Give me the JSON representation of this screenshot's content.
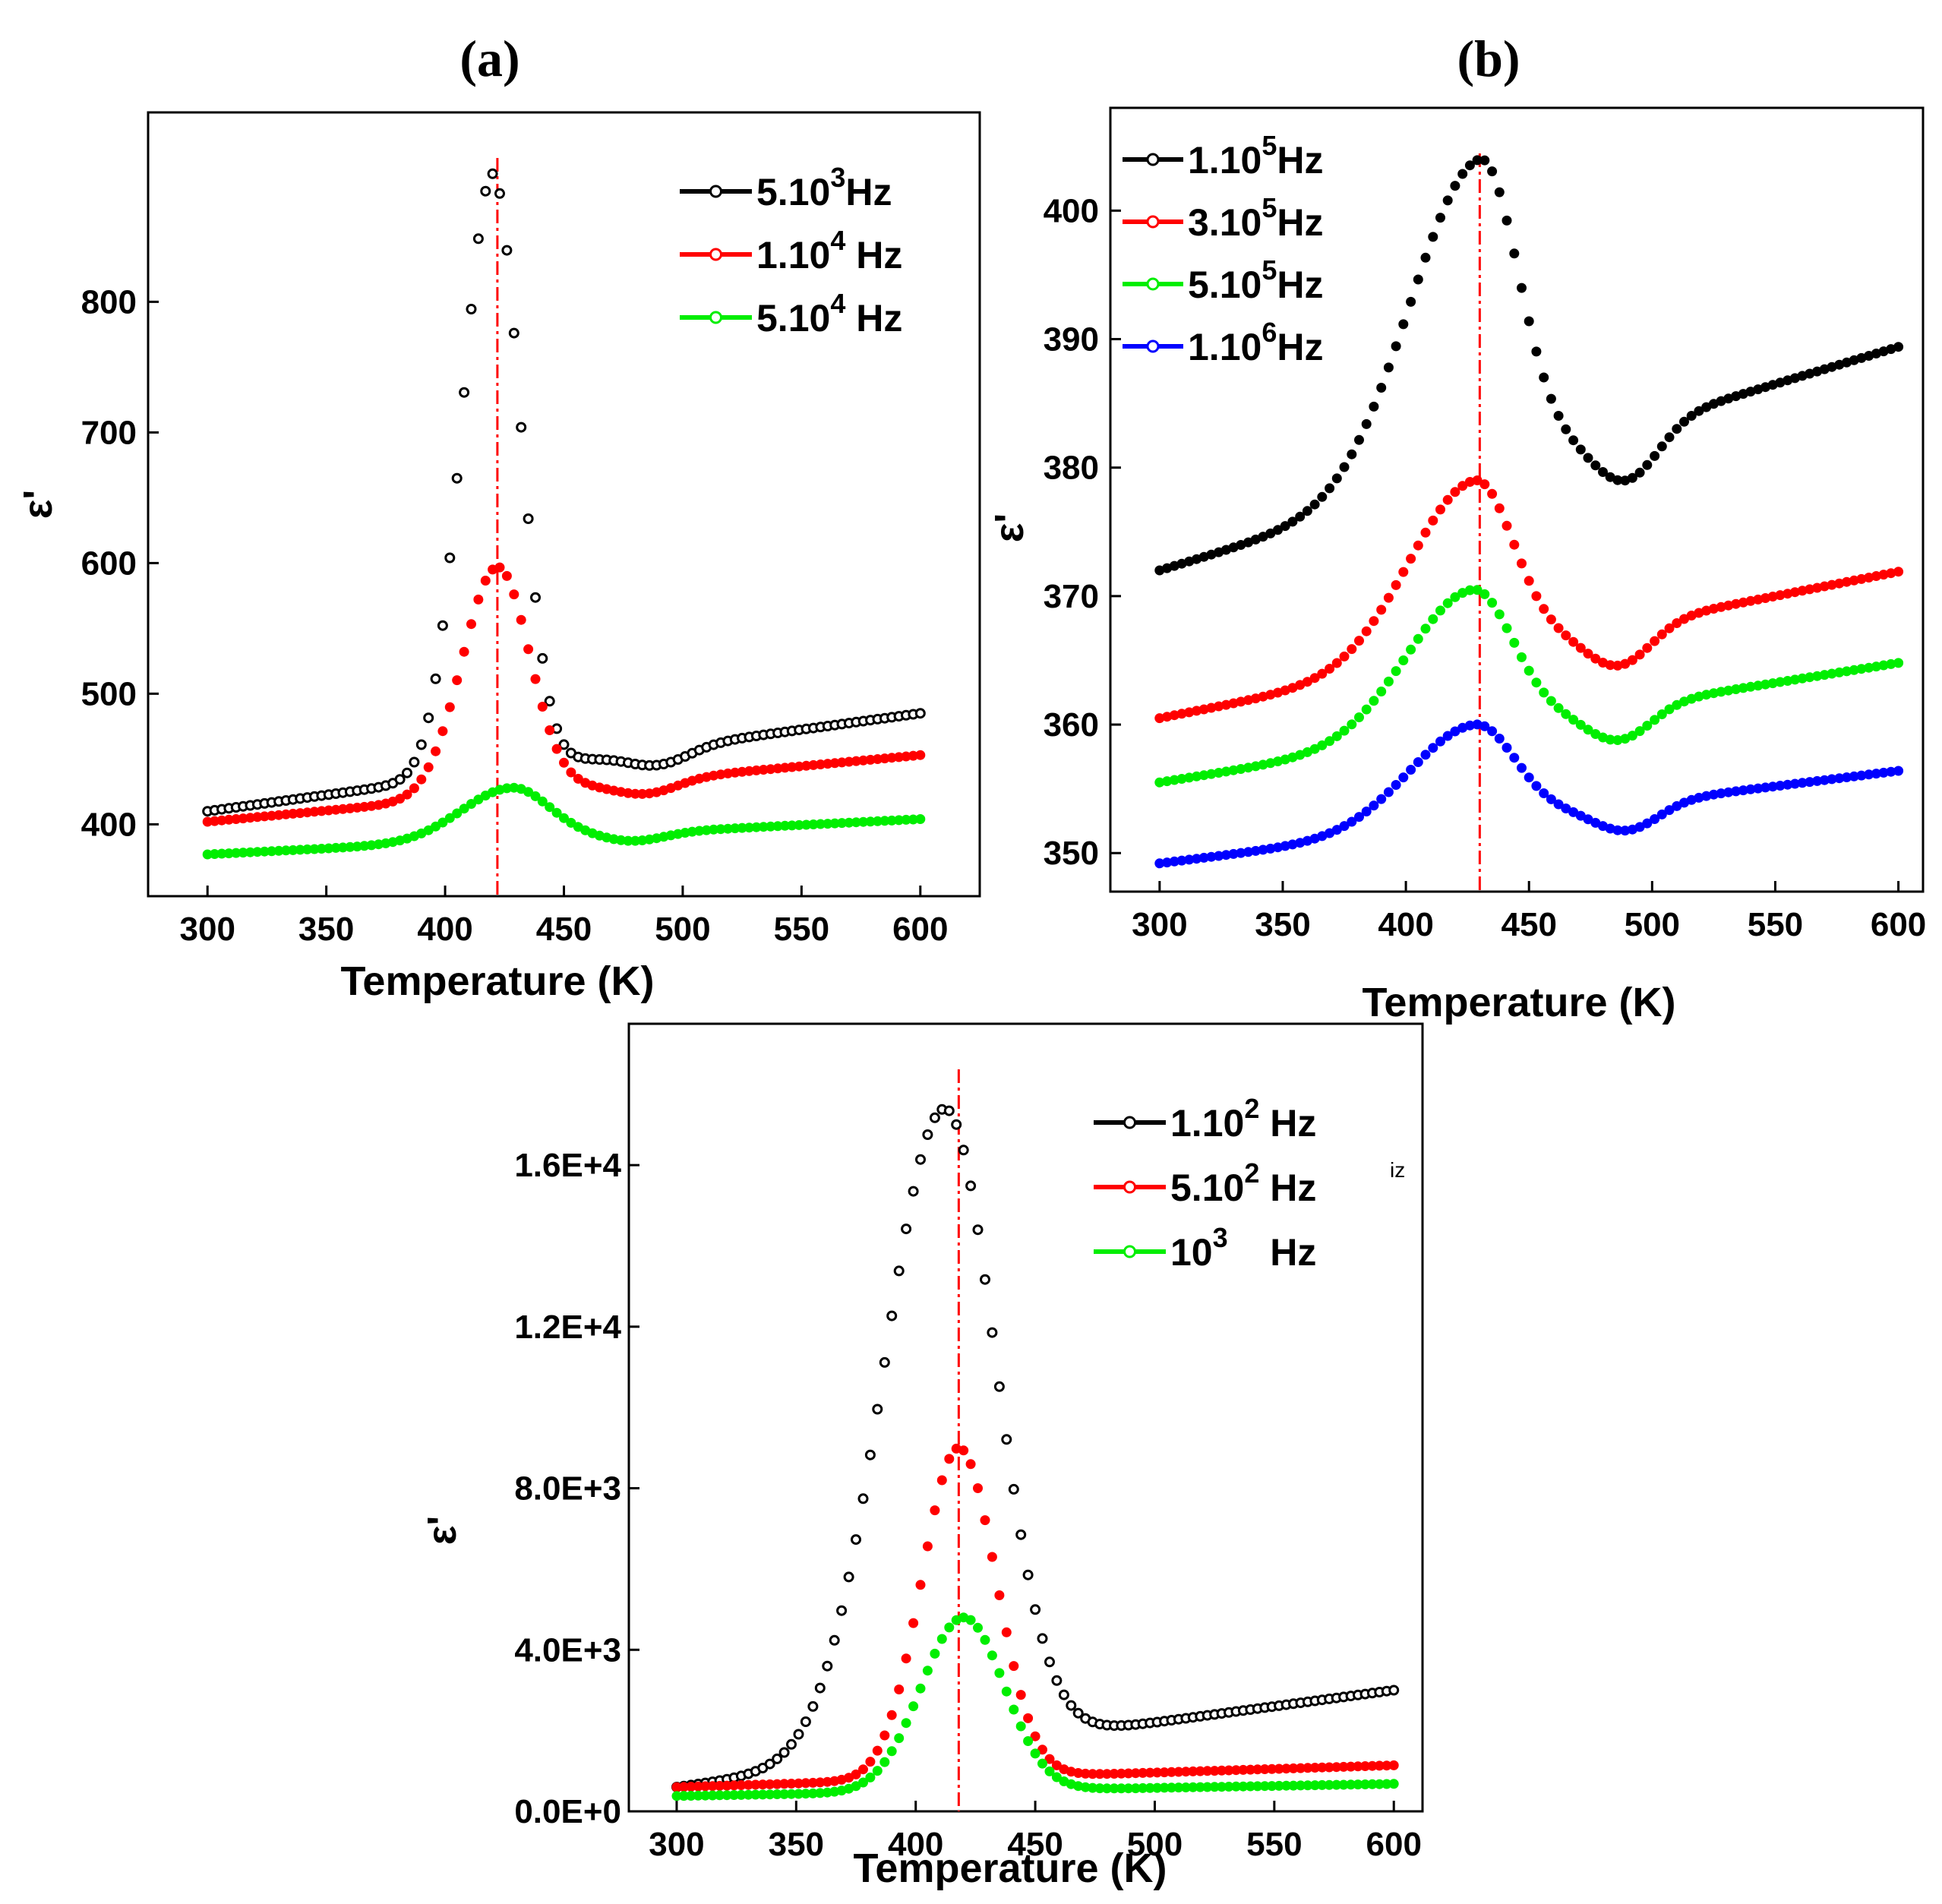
{
  "chart_data": [
    {
      "id": "a",
      "type": "scatter",
      "title": "(a)",
      "xlabel": "Temperature (K)",
      "ylabel": "ε'",
      "xlim": [
        275,
        625
      ],
      "ylim": [
        345,
        945
      ],
      "xticks": [
        300,
        350,
        400,
        450,
        500,
        550,
        600
      ],
      "yticks": [
        400,
        500,
        600,
        700,
        800
      ],
      "marker_line_x": 422,
      "legend_position": "top-right",
      "series": [
        {
          "name": "5.10³Hz",
          "legend_base": "5.10",
          "legend_exp": "3",
          "legend_unit": "Hz",
          "color": "#000000",
          "baseline": 410,
          "slope": 0.25,
          "peak": 898,
          "tc": 420,
          "w_left": 18,
          "w_right": 16,
          "dip_at": 490,
          "dip_depth": 12
        },
        {
          "name": "1.10⁴ Hz",
          "legend_base": "1.10",
          "legend_exp": "4",
          "legend_unit": " Hz",
          "color": "#ff0000",
          "baseline": 402,
          "slope": 0.17,
          "peak": 597,
          "tc": 422,
          "w_left": 21,
          "w_right": 19,
          "dip_at": 485,
          "dip_depth": 10
        },
        {
          "name": "5.10⁴ Hz",
          "legend_base": "5.10",
          "legend_exp": "4",
          "legend_unit": " Hz",
          "color": "#00ee00",
          "baseline": 377,
          "slope": 0.09,
          "peak": 428,
          "tc": 428,
          "w_left": 30,
          "w_right": 22,
          "dip_at": 480,
          "dip_depth": 6
        }
      ]
    },
    {
      "id": "b",
      "type": "scatter",
      "title": "(b)",
      "xlabel": "Temperature (K)",
      "ylabel": "ε'",
      "xlim": [
        280,
        610
      ],
      "ylim": [
        347,
        408
      ],
      "xticks": [
        300,
        350,
        400,
        450,
        500,
        550,
        600
      ],
      "yticks": [
        350,
        360,
        370,
        380,
        390,
        400
      ],
      "marker_line_x": 430,
      "legend_position": "top-left",
      "series": [
        {
          "name": "1.10⁵Hz",
          "legend_base": "1.10",
          "legend_exp": "5",
          "legend_unit": "Hz",
          "color": "#000000",
          "baseline": 372,
          "slope": 0.058,
          "peak": 404,
          "tc": 430,
          "w_left": 40,
          "w_right": 22,
          "dip_at": 490,
          "dip_depth": 4
        },
        {
          "name": "3.10⁵Hz",
          "legend_base": "3.10",
          "legend_exp": "5",
          "legend_unit": "Hz",
          "color": "#ff0000",
          "baseline": 360.5,
          "slope": 0.038,
          "peak": 379,
          "tc": 428,
          "w_left": 38,
          "w_right": 22,
          "dip_at": 487,
          "dip_depth": 3
        },
        {
          "name": "5.10⁵Hz",
          "legend_base": "5.10",
          "legend_exp": "5",
          "legend_unit": "Hz",
          "color": "#00ee00",
          "baseline": 355.5,
          "slope": 0.031,
          "peak": 370.5,
          "tc": 427,
          "w_left": 38,
          "w_right": 23,
          "dip_at": 487,
          "dip_depth": 2.5
        },
        {
          "name": "1.10⁶Hz",
          "legend_base": "1.10",
          "legend_exp": "6",
          "legend_unit": "Hz",
          "color": "#0000ff",
          "baseline": 349.2,
          "slope": 0.024,
          "peak": 360,
          "tc": 428,
          "w_left": 38,
          "w_right": 23,
          "dip_at": 490,
          "dip_depth": 2
        }
      ]
    },
    {
      "id": "c",
      "type": "scatter",
      "title": "",
      "xlabel": "Temperature (K)",
      "ylabel": "ε'",
      "xlim": [
        280,
        612
      ],
      "ylim": [
        0,
        19500
      ],
      "xticks": [
        300,
        350,
        400,
        450,
        500,
        550,
        600
      ],
      "yticks": [
        0,
        4000,
        8000,
        12000,
        16000
      ],
      "ytick_labels": [
        "0.0E+0",
        "4.0E+3",
        "8.0E+3",
        "1.2E+4",
        "1.6E+4"
      ],
      "marker_line_x": 418,
      "legend_position": "top-right",
      "stray_text": "iz",
      "series": [
        {
          "name": "1.10² Hz",
          "legend_base": "1.10",
          "legend_exp": "2",
          "legend_unit": " Hz",
          "color": "#000000",
          "baseline": 600,
          "slope": 8,
          "peak": 17400,
          "tc": 412,
          "w_left": 36,
          "w_right": 30,
          "dip_at": 500,
          "dip_depth": 0
        },
        {
          "name": "5.10² Hz",
          "legend_base": "5.10",
          "legend_exp": "2",
          "legend_unit": " Hz",
          "color": "#ff0000",
          "baseline": 600,
          "slope": 1.8,
          "peak": 9000,
          "tc": 418,
          "w_left": 22,
          "w_right": 22,
          "dip_at": 500,
          "dip_depth": 0
        },
        {
          "name": "10³ Hz",
          "legend_base": "10",
          "legend_exp": "3",
          "legend_unit": "    Hz",
          "color": "#00ee00",
          "baseline": 380,
          "slope": 1.0,
          "peak": 4800,
          "tc": 420,
          "w_left": 25,
          "w_right": 24,
          "dip_at": 500,
          "dip_depth": 0
        }
      ]
    }
  ]
}
